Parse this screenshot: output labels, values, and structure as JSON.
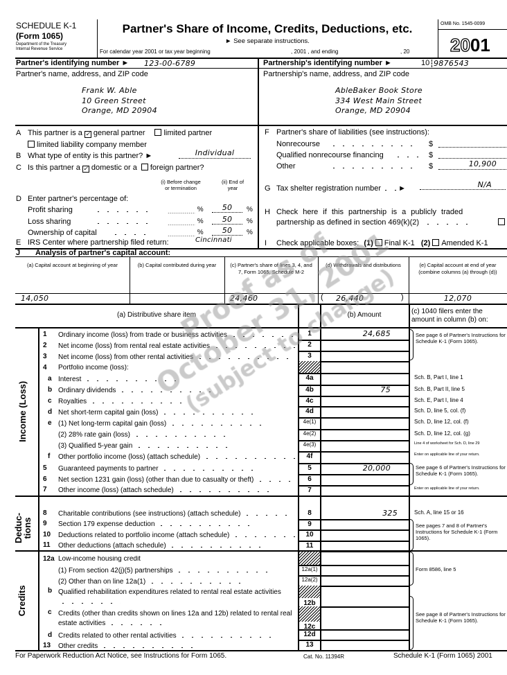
{
  "header": {
    "schedule": "SCHEDULE K-1",
    "form": "(Form 1065)",
    "dept1": "Department of the Treasury",
    "dept2": "Internal Revenue Service",
    "title": "Partner's Share of Income, Credits, Deductions, etc.",
    "instructions": "► See separate instructions.",
    "year_line": "For calendar year 2001 or tax year beginning",
    "year_mid": ", 2001 , and ending",
    "year_end": ", 20",
    "omb": "OMB No. 1545-0099",
    "year_prefix": "20",
    "year_suffix": "01"
  },
  "ids": {
    "partner_label": "Partner's identifying number ►",
    "partner_value": "123-00-6789",
    "partnership_label": "Partnership's identifying number ►",
    "partnership_prefix": "10",
    "partnership_value": "9876543"
  },
  "partner": {
    "label": "Partner's name, address, and ZIP code",
    "name": "Frank W. Able",
    "street": "10 Green Street",
    "city": "Orange, MD 20904"
  },
  "partnership": {
    "label": "Partnership's name, address, and ZIP code",
    "name": "AbleBaker Book Store",
    "street": "334 West Main Street",
    "city": "Orange, MD 20904"
  },
  "sectionA": {
    "letter": "A",
    "text": "This partner is a",
    "general": "general partner",
    "general_checked": true,
    "limited": "limited partner",
    "limited_checked": false,
    "llc": "limited liability company member",
    "llc_checked": false
  },
  "sectionB": {
    "letter": "B",
    "text": "What type of entity is this partner? ►",
    "value": "Individual"
  },
  "sectionC": {
    "letter": "C",
    "text": "Is this partner a",
    "domestic": "domestic or a",
    "domestic_checked": true,
    "foreign": "foreign partner?",
    "foreign_checked": false
  },
  "sectionD": {
    "letter": "D",
    "col_i": [
      "(i) Before change",
      "or termination"
    ],
    "col_ii": [
      "(ii) End of",
      "year"
    ],
    "text": "Enter partner's percentage of:",
    "pct": "%",
    "rows": [
      {
        "label": "Profit sharing",
        "end": "50"
      },
      {
        "label": "Loss sharing",
        "end": "50"
      },
      {
        "label": "Ownership of capital",
        "end": "50"
      }
    ]
  },
  "sectionE": {
    "letter": "E",
    "text": "IRS Center where partnership filed return:",
    "value": "Cincinnati"
  },
  "sectionF": {
    "letter": "F",
    "text": "Partner's share of liabilities (see instructions):",
    "currency": "$",
    "rows": [
      {
        "label": "Nonrecourse",
        "value": ""
      },
      {
        "label": "Qualified nonrecourse financing",
        "value": ""
      },
      {
        "label": "Other",
        "value": "10,900"
      }
    ]
  },
  "sectionG": {
    "letter": "G",
    "text": "Tax shelter registration number",
    "value": "N/A"
  },
  "sectionH": {
    "letter": "H",
    "line1": "Check here if this partnership is a publicly traded",
    "line2": "partnership as defined in section 469(k)(2)",
    "checked": false
  },
  "sectionI": {
    "letter": "I",
    "text": "Check applicable boxes:",
    "opt1_num": "(1)",
    "opt1": "Final K-1",
    "opt2_num": "(2)",
    "opt2": "Amended K-1"
  },
  "sectionJ": {
    "letter": "J",
    "title": "Analysis of partner's capital account:",
    "columns": [
      "(a) Capital account at beginning of year",
      "(b) Capital contributed during year",
      "(c) Partner's share of lines 3, 4, and 7, Form 1065, Schedule M-2",
      "(d) Withdrawals and distributions",
      "(e) Capital account at end of year (combine columns (a) through (d))"
    ],
    "values": [
      "14,050",
      "",
      "24,460",
      "26,440",
      "12,070"
    ]
  },
  "table": {
    "col_a": "(a) Distributive share item",
    "col_b": "(b) Amount",
    "col_c": "(c) 1040 filers enter the amount in column (b) on:",
    "sections": [
      "Income (Loss)",
      "Deduc-",
      "tions",
      "Credits"
    ],
    "rows": [
      {
        "num": "1",
        "text": "Ordinary income (loss) from trade or business activities",
        "line": "1",
        "amount": "24,685",
        "note": ""
      },
      {
        "num": "2",
        "text": "Net income (loss) from rental real estate activities",
        "line": "2",
        "amount": "",
        "note": ""
      },
      {
        "num": "3",
        "text": "Net income (loss) from other rental activities",
        "line": "3",
        "amount": "",
        "note": ""
      },
      {
        "num": "4",
        "text": "Portfolio income (loss):",
        "line": "",
        "amount": "",
        "note": ""
      },
      {
        "num": "a",
        "text": "Interest",
        "line": "4a",
        "amount": "",
        "note": "Sch. B, Part I, line 1"
      },
      {
        "num": "b",
        "text": "Ordinary dividends",
        "line": "4b",
        "amount": "75",
        "note": "Sch. B, Part II, line 5"
      },
      {
        "num": "c",
        "text": "Royalties",
        "line": "4c",
        "amount": "",
        "note": "Sch. E, Part I, line 4"
      },
      {
        "num": "d",
        "text": "Net short-term capital gain (loss)",
        "line": "4d",
        "amount": "",
        "note": "Sch. D, line 5, col. (f)"
      },
      {
        "num": "e",
        "text": "(1) Net long-term capital gain (loss)",
        "line": "4e(1)",
        "amount": "",
        "note": "Sch. D, line 12, col. (f)"
      },
      {
        "num": "",
        "text": "(2) 28% rate gain (loss)",
        "line": "4e(2)",
        "amount": "",
        "note": "Sch. D, line 12, col. (g)"
      },
      {
        "num": "",
        "text": "(3) Qualified 5-year gain",
        "line": "4e(3)",
        "amount": "",
        "note": "Line 4 of worksheet for Sch. D, line 29"
      },
      {
        "num": "f",
        "text": "Other portfolio income (loss) (attach schedule)",
        "line": "4f",
        "amount": "",
        "note": "Enter on applicable line of your return."
      },
      {
        "num": "5",
        "text": "Guaranteed payments to partner",
        "line": "5",
        "amount": "20,000",
        "note": ""
      },
      {
        "num": "6",
        "text": "Net section 1231 gain (loss) (other than due to casualty or theft)",
        "line": "6",
        "amount": "",
        "note": ""
      },
      {
        "num": "7",
        "text": "Other income (loss) (attach schedule)",
        "line": "7",
        "amount": "",
        "note": "Enter on applicable line of your return."
      },
      {
        "num": "8",
        "text": "Charitable contributions (see instructions) (attach schedule)",
        "line": "8",
        "amount": "325",
        "note": "Sch. A, line 15 or 16"
      },
      {
        "num": "9",
        "text": "Section 179 expense deduction",
        "line": "9",
        "amount": "",
        "note": ""
      },
      {
        "num": "10",
        "text": "Deductions related to portfolio income (attach schedule)",
        "line": "10",
        "amount": "",
        "note": ""
      },
      {
        "num": "11",
        "text": "Other deductions (attach schedule)",
        "line": "11",
        "amount": "",
        "note": ""
      },
      {
        "num": "12a",
        "text": "Low-income housing credit",
        "line": "",
        "amount": "",
        "note": ""
      },
      {
        "num": "",
        "text": "(1) From section 42(j)(5) partnerships",
        "line": "12a(1)",
        "amount": "",
        "note": ""
      },
      {
        "num": "",
        "text": "(2) Other than on line 12a(1)",
        "line": "12a(2)",
        "amount": "",
        "note": ""
      },
      {
        "num": "b",
        "text": "Qualified rehabilitation expenditures related to rental real estate activities",
        "line": "12b",
        "amount": "",
        "note": ""
      },
      {
        "num": "c",
        "text": "Credits (other than credits shown on lines 12a and 12b) related to rental real estate activities",
        "line": "12c",
        "amount": "",
        "note": ""
      },
      {
        "num": "d",
        "text": "Credits related to other rental activities",
        "line": "12d",
        "amount": "",
        "note": ""
      },
      {
        "num": "13",
        "text": "Other credits",
        "line": "13",
        "amount": "",
        "note": ""
      }
    ],
    "group_notes": [
      "See page 6 of Partner's Instructions for Schedule K-1 (Form 1065).",
      "See page 6 of Partner's Instructions for Schedule K-1 (Form 1065).",
      "See pages 7 and 8 of Partner's Instructions for Schedule K-1 (Form 1065).",
      "Form 8586, line 5",
      "See page 8 of Partner's Instructions for Schedule K-1 (Form 1065)."
    ]
  },
  "footer": {
    "left": "For Paperwork Reduction Act Notice, see Instructions for Form 1065.",
    "cat": "Cat. No. 11394R",
    "right": "Schedule K-1 (Form 1065) 2001"
  },
  "watermark": [
    "Proof as of",
    "October 31, 2001",
    "(subject to change)"
  ]
}
